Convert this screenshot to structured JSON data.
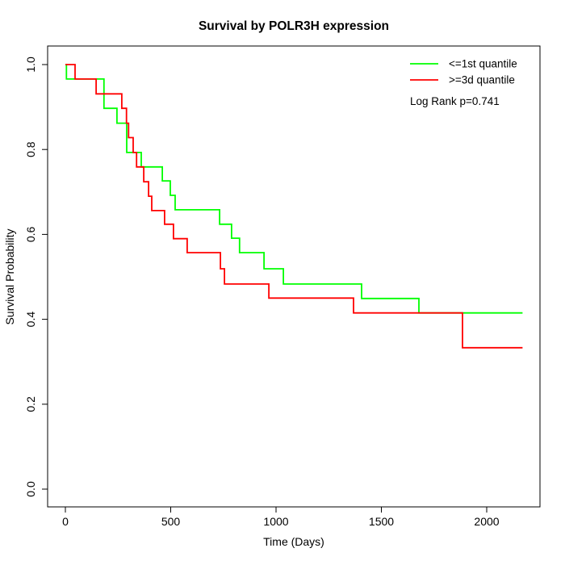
{
  "title": "Survival by POLR3H expression",
  "axes": {
    "xlabel": "Time (Days)",
    "ylabel": "Survival Probability",
    "x_tick_labels": [
      "0",
      "500",
      "1000",
      "1500",
      "2000"
    ],
    "y_tick_labels": [
      "0.0",
      "0.2",
      "0.4",
      "0.6",
      "0.8",
      "1.0"
    ]
  },
  "legend": {
    "items": [
      {
        "label": "<=1st quantile",
        "color": "#00ff00"
      },
      {
        "label": ">=3d quantile",
        "color": "#ff0000"
      }
    ],
    "note": "Log Rank p=0.741"
  },
  "chart_data": {
    "type": "line",
    "subtype": "kaplan-meier-step-curves",
    "title": "Survival by POLR3H expression",
    "xlabel": "Time (Days)",
    "ylabel": "Survival Probability",
    "xlim": [
      -85,
      2250
    ],
    "ylim": [
      0.0,
      1.0
    ],
    "x_ticks": [
      0,
      500,
      1000,
      1500,
      2000
    ],
    "y_ticks": [
      0.0,
      0.2,
      0.4,
      0.6,
      0.8,
      1.0
    ],
    "grid": false,
    "legend_position": "top-right",
    "annotation": "Log Rank p=0.741",
    "series": [
      {
        "name": "<=1st quantile",
        "color": "#00ff00",
        "points_comment": "each [time_days, survival_prob_after_step]",
        "points": [
          [
            0,
            1.0
          ],
          [
            5,
            0.966
          ],
          [
            183,
            0.897
          ],
          [
            245,
            0.862
          ],
          [
            291,
            0.793
          ],
          [
            360,
            0.759
          ],
          [
            460,
            0.726
          ],
          [
            498,
            0.692
          ],
          [
            521,
            0.658
          ],
          [
            732,
            0.624
          ],
          [
            789,
            0.591
          ],
          [
            827,
            0.557
          ],
          [
            943,
            0.519
          ],
          [
            1035,
            0.483
          ],
          [
            1406,
            0.449
          ],
          [
            1678,
            0.415
          ]
        ],
        "end_time": 2170
      },
      {
        "name": ">=3d quantile",
        "color": "#ff0000",
        "points_comment": "each [time_days, survival_prob_after_step]",
        "points": [
          [
            0,
            1.0
          ],
          [
            46,
            0.966
          ],
          [
            146,
            0.931
          ],
          [
            268,
            0.897
          ],
          [
            290,
            0.862
          ],
          [
            300,
            0.828
          ],
          [
            322,
            0.793
          ],
          [
            338,
            0.759
          ],
          [
            372,
            0.724
          ],
          [
            395,
            0.69
          ],
          [
            410,
            0.656
          ],
          [
            471,
            0.624
          ],
          [
            513,
            0.59
          ],
          [
            578,
            0.557
          ],
          [
            736,
            0.519
          ],
          [
            755,
            0.483
          ],
          [
            966,
            0.45
          ],
          [
            1368,
            0.415
          ],
          [
            1885,
            0.333
          ]
        ],
        "end_time": 2170
      }
    ]
  }
}
